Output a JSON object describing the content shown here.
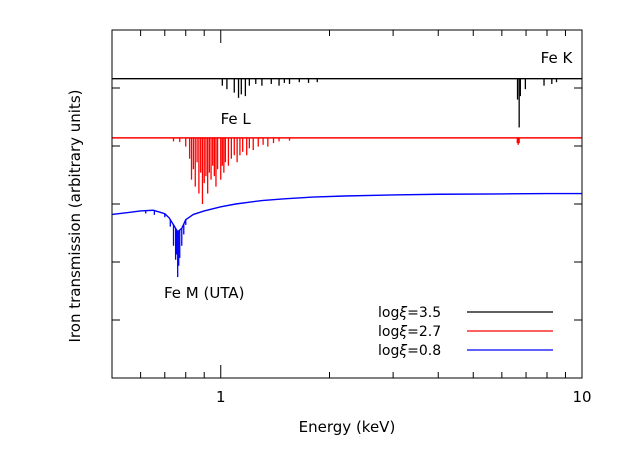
{
  "chart_data": {
    "type": "line",
    "title": "",
    "xlabel": "Energy (keV)",
    "ylabel": "Iron transmission (arbitrary units)",
    "x_scale": "log",
    "xlim": [
      0.5,
      10
    ],
    "ylim": [
      0,
      1
    ],
    "x_tick_labels": [
      {
        "value": 1,
        "label": "1"
      },
      {
        "value": 10,
        "label": "10"
      }
    ],
    "x_major_ticks": [
      1,
      10
    ],
    "x_minor_ticks": [
      0.5,
      0.6,
      0.7,
      0.8,
      0.9,
      2,
      3,
      4,
      5,
      6,
      7,
      8,
      9
    ],
    "y_ticks": [
      0.0,
      0.1667,
      0.3333,
      0.5,
      0.6667,
      0.8333,
      1.0
    ],
    "legend_position": "bottom-right",
    "series": [
      {
        "name": "logξ=3.5",
        "legend_prefix": "log",
        "legend_symbol": "ξ",
        "legend_value": "=3.5",
        "color": "#000000",
        "continuum": 0.86,
        "baseline": [
          [
            0.5,
            0.86
          ],
          [
            10,
            0.86
          ]
        ],
        "lines": [
          {
            "e": 1.01,
            "d": 0.02
          },
          {
            "e": 1.04,
            "d": 0.03
          },
          {
            "e": 1.09,
            "d": 0.04
          },
          {
            "e": 1.12,
            "d": 0.055
          },
          {
            "e": 1.14,
            "d": 0.045
          },
          {
            "e": 1.17,
            "d": 0.05
          },
          {
            "e": 1.2,
            "d": 0.02
          },
          {
            "e": 1.25,
            "d": 0.015
          },
          {
            "e": 1.3,
            "d": 0.02
          },
          {
            "e": 1.38,
            "d": 0.015
          },
          {
            "e": 1.45,
            "d": 0.02
          },
          {
            "e": 1.5,
            "d": 0.012
          },
          {
            "e": 1.55,
            "d": 0.015
          },
          {
            "e": 1.65,
            "d": 0.01
          },
          {
            "e": 1.75,
            "d": 0.012
          },
          {
            "e": 1.85,
            "d": 0.01
          },
          {
            "e": 6.63,
            "d": 0.06
          },
          {
            "e": 6.7,
            "d": 0.14
          },
          {
            "e": 6.75,
            "d": 0.05
          },
          {
            "e": 6.97,
            "d": 0.03
          },
          {
            "e": 7.85,
            "d": 0.02
          },
          {
            "e": 8.25,
            "d": 0.015
          },
          {
            "e": 8.5,
            "d": 0.01
          }
        ]
      },
      {
        "name": "logξ=2.7",
        "legend_prefix": "log",
        "legend_symbol": "ξ",
        "legend_value": "=2.7",
        "color": "#ff0000",
        "continuum": 0.69,
        "baseline": [
          [
            0.5,
            0.69
          ],
          [
            10,
            0.69
          ]
        ],
        "lines": [
          {
            "e": 0.74,
            "d": 0.01
          },
          {
            "e": 0.77,
            "d": 0.012
          },
          {
            "e": 0.8,
            "d": 0.025
          },
          {
            "e": 0.82,
            "d": 0.06
          },
          {
            "e": 0.83,
            "d": 0.12
          },
          {
            "e": 0.84,
            "d": 0.09
          },
          {
            "e": 0.85,
            "d": 0.14
          },
          {
            "e": 0.86,
            "d": 0.07
          },
          {
            "e": 0.87,
            "d": 0.16
          },
          {
            "e": 0.88,
            "d": 0.1
          },
          {
            "e": 0.89,
            "d": 0.19
          },
          {
            "e": 0.9,
            "d": 0.13
          },
          {
            "e": 0.91,
            "d": 0.11
          },
          {
            "e": 0.92,
            "d": 0.16
          },
          {
            "e": 0.93,
            "d": 0.1
          },
          {
            "e": 0.94,
            "d": 0.12
          },
          {
            "e": 0.95,
            "d": 0.08
          },
          {
            "e": 0.96,
            "d": 0.11
          },
          {
            "e": 0.97,
            "d": 0.14
          },
          {
            "e": 0.98,
            "d": 0.09
          },
          {
            "e": 1.0,
            "d": 0.12
          },
          {
            "e": 1.01,
            "d": 0.08
          },
          {
            "e": 1.02,
            "d": 0.1
          },
          {
            "e": 1.03,
            "d": 0.07
          },
          {
            "e": 1.05,
            "d": 0.08
          },
          {
            "e": 1.07,
            "d": 0.06
          },
          {
            "e": 1.09,
            "d": 0.05
          },
          {
            "e": 1.11,
            "d": 0.07
          },
          {
            "e": 1.13,
            "d": 0.05
          },
          {
            "e": 1.15,
            "d": 0.04
          },
          {
            "e": 1.18,
            "d": 0.05
          },
          {
            "e": 1.2,
            "d": 0.03
          },
          {
            "e": 1.23,
            "d": 0.035
          },
          {
            "e": 1.27,
            "d": 0.025
          },
          {
            "e": 1.31,
            "d": 0.02
          },
          {
            "e": 1.35,
            "d": 0.025
          },
          {
            "e": 1.4,
            "d": 0.015
          },
          {
            "e": 1.45,
            "d": 0.01
          },
          {
            "e": 1.55,
            "d": 0.008
          },
          {
            "e": 6.62,
            "d": 0.015
          },
          {
            "e": 6.66,
            "d": 0.02
          },
          {
            "e": 6.7,
            "d": 0.015
          }
        ]
      },
      {
        "name": "logξ=0.8",
        "legend_prefix": "log",
        "legend_symbol": "ξ",
        "legend_value": "=0.8",
        "color": "#0000ff",
        "baseline": [
          [
            0.5,
            0.47
          ],
          [
            0.55,
            0.475
          ],
          [
            0.6,
            0.48
          ],
          [
            0.65,
            0.482
          ],
          [
            0.68,
            0.476
          ],
          [
            0.7,
            0.472
          ],
          [
            0.72,
            0.46
          ],
          [
            0.74,
            0.44
          ],
          [
            0.76,
            0.42
          ],
          [
            0.78,
            0.43
          ],
          [
            0.8,
            0.455
          ],
          [
            0.84,
            0.47
          ],
          [
            0.9,
            0.48
          ],
          [
            1.0,
            0.492
          ],
          [
            1.1,
            0.5
          ],
          [
            1.3,
            0.51
          ],
          [
            1.5,
            0.515
          ],
          [
            1.8,
            0.52
          ],
          [
            2.2,
            0.523
          ],
          [
            3.0,
            0.526
          ],
          [
            4.0,
            0.528
          ],
          [
            6.0,
            0.529
          ],
          [
            8.0,
            0.53
          ],
          [
            10,
            0.53
          ]
        ],
        "lines": [
          {
            "e": 0.62,
            "d": 0.008
          },
          {
            "e": 0.655,
            "d": 0.012
          },
          {
            "e": 0.7,
            "d": 0.01
          },
          {
            "e": 0.725,
            "d": 0.02
          },
          {
            "e": 0.74,
            "d": 0.06
          },
          {
            "e": 0.75,
            "d": 0.09
          },
          {
            "e": 0.755,
            "d": 0.07
          },
          {
            "e": 0.76,
            "d": 0.13
          },
          {
            "e": 0.765,
            "d": 0.1
          },
          {
            "e": 0.77,
            "d": 0.08
          },
          {
            "e": 0.78,
            "d": 0.05
          },
          {
            "e": 0.79,
            "d": 0.03
          },
          {
            "e": 0.8,
            "d": 0.015
          }
        ]
      }
    ],
    "annotations": [
      {
        "text": "Fe K",
        "x": 8.5,
        "y": 0.905,
        "anchor": "middle"
      },
      {
        "text": "Fe L",
        "x": 1.1,
        "y": 0.73,
        "anchor": "middle"
      },
      {
        "text": "Fe M (UTA)",
        "x": 0.9,
        "y": 0.23,
        "anchor": "middle"
      }
    ]
  }
}
